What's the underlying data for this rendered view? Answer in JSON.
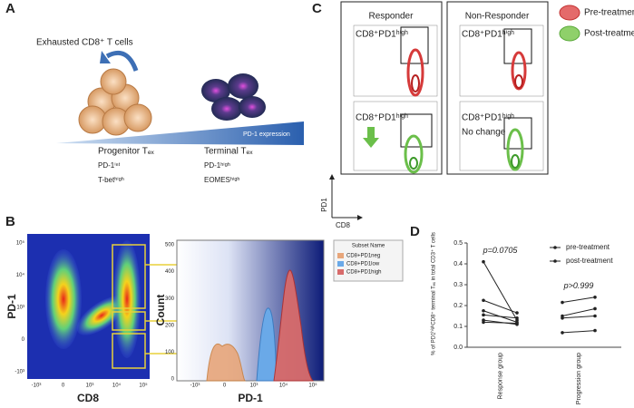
{
  "panel_a": {
    "letter": "A",
    "title": "Exhausted CD8⁺ T cells",
    "gradient_label": "PD-1 expression",
    "progenitor": {
      "name": "Progenitor Tₑₓ",
      "markers": [
        "PD-1ⁱⁿᵗ",
        "T-betʰⁱᵍʰ"
      ]
    },
    "terminal": {
      "name": "Terminal Tₑₓ",
      "markers": [
        "PD-1ʰⁱᵍʰ",
        "EOMESʰⁱᵍʰ"
      ]
    }
  },
  "panel_b": {
    "letter": "B",
    "dot_plot": {
      "y_label": "PD-1",
      "x_label": "CD8",
      "y_ticks": [
        "10⁵",
        "10⁴",
        "10³",
        "0",
        "-10³"
      ],
      "x_ticks": [
        "-10³",
        "0",
        "10³",
        "10⁴",
        "10⁵"
      ]
    },
    "histogram": {
      "y_label": "Count",
      "x_label": "PD-1",
      "y_ticks": [
        "500",
        "400",
        "300",
        "200",
        "100",
        "0"
      ],
      "x_ticks": [
        "-10³",
        "0",
        "10³",
        "10⁴",
        "10⁵"
      ]
    },
    "legend": {
      "title": "Subset Name",
      "items": [
        "CD8+PD1neg",
        "CD8+PD1low",
        "CD8+PD1high"
      ]
    }
  },
  "panel_c": {
    "letter": "C",
    "columns": [
      "Responder",
      "Non-Responder"
    ],
    "gates": [
      [
        "CD8⁺PD1ʰⁱᵍʰ",
        "CD8⁺PD1ʰⁱᵍʰ"
      ],
      [
        "CD8⁺PD1ʰⁱᵍʰ",
        "CD8⁺PD1ʰⁱᵍʰ"
      ]
    ],
    "note": "No change",
    "legend": [
      "Pre-treatment",
      "Post-treatment"
    ],
    "y_label": "PD1",
    "x_label": "CD8"
  },
  "panel_d": {
    "letter": "D"
  },
  "chart_data": {
    "type": "paired-dot",
    "y_label": "% of PD1ʰⁱᵍʰCD8⁺ terminal Tₑₓ in total CD3⁺ T cells",
    "categories": [
      "Response group",
      "Progression group"
    ],
    "annotations": [
      "p=0.0705",
      "p>0.999"
    ],
    "series": [
      {
        "name": "pre-treatment",
        "color": "#222222",
        "values": [
          [
            0.41,
            0.225,
            0.175,
            0.155,
            0.13,
            0.12
          ],
          [
            0.215,
            0.15,
            0.14,
            0.07
          ]
        ]
      },
      {
        "name": "post-treatment",
        "color": "#222222",
        "values": [
          [
            0.13,
            0.165,
            0.12,
            0.14,
            0.11,
            0.115
          ],
          [
            0.24,
            0.185,
            0.15,
            0.08
          ]
        ]
      }
    ],
    "ylim": [
      0,
      0.5
    ],
    "yticks": [
      {
        "value": 0,
        "label": "0.0"
      },
      {
        "value": 0.1,
        "label": "0.1"
      },
      {
        "value": 0.2,
        "label": "0.2"
      },
      {
        "value": 0.3,
        "label": "0.3"
      },
      {
        "value": 0.4,
        "label": "0.4"
      },
      {
        "value": 0.5,
        "label": "0.5"
      }
    ],
    "legend": "top-right"
  }
}
